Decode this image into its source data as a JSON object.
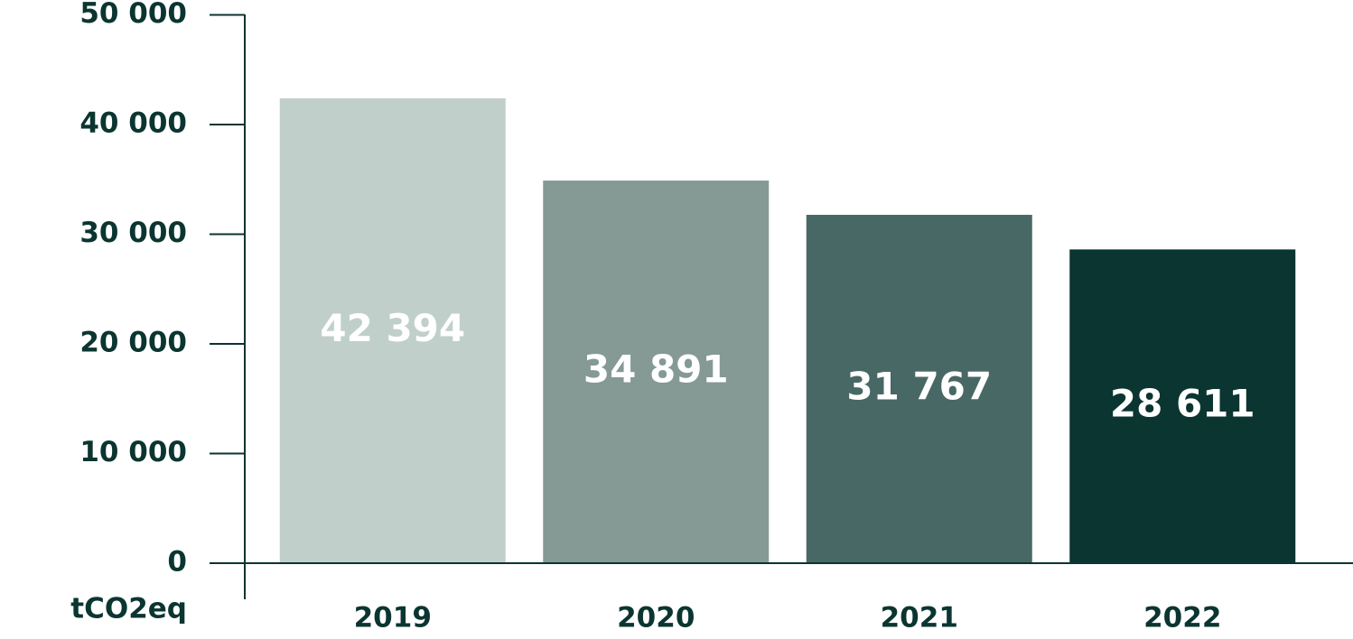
{
  "chart_data": {
    "type": "bar",
    "y_label": "tCO2eq",
    "categories": [
      "2019",
      "2020",
      "2021",
      "2022"
    ],
    "values": [
      42394,
      34891,
      31767,
      28611
    ],
    "value_labels": [
      "42 394",
      "34 891",
      "31 767",
      "28 611"
    ],
    "colors": [
      "#c1cfcb",
      "#859995",
      "#486865",
      "#0b3530"
    ],
    "ylim": [
      0,
      50000
    ],
    "yticks": [
      {
        "value": 0,
        "label": "0"
      },
      {
        "value": 10000,
        "label": "10 000"
      },
      {
        "value": 20000,
        "label": "20 000"
      },
      {
        "value": 30000,
        "label": "30 000"
      },
      {
        "value": 40000,
        "label": "40 000"
      },
      {
        "value": 50000,
        "label": "50 000"
      }
    ]
  }
}
